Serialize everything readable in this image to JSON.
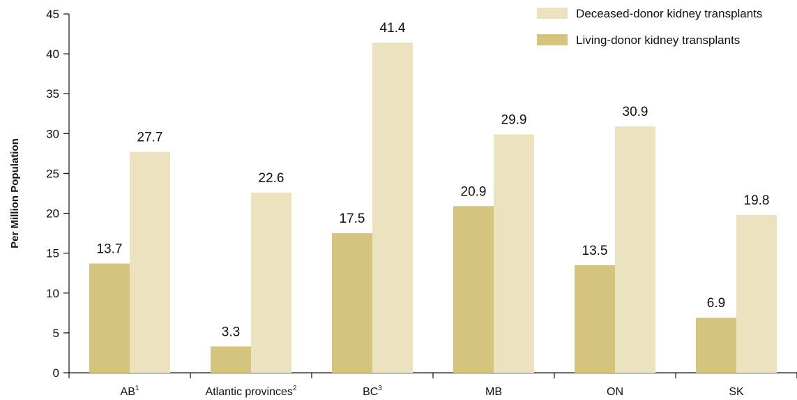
{
  "chart_data": {
    "type": "bar",
    "ylabel": "Per Million Population",
    "xlabel": "",
    "ylim": [
      0,
      45
    ],
    "yticks": [
      0,
      5,
      10,
      15,
      20,
      25,
      30,
      35,
      40,
      45
    ],
    "grid": false,
    "legend_position": "top-right",
    "categories": [
      {
        "label": "AB",
        "sup": "1"
      },
      {
        "label": "Atlantic provinces",
        "sup": "2"
      },
      {
        "label": "BC",
        "sup": "3"
      },
      {
        "label": "MB",
        "sup": ""
      },
      {
        "label": "ON",
        "sup": ""
      },
      {
        "label": "SK",
        "sup": ""
      }
    ],
    "series": [
      {
        "name": "Living-donor kidney transplants",
        "color": "#d4c47e",
        "values": [
          13.7,
          3.3,
          17.5,
          20.9,
          13.5,
          6.9
        ]
      },
      {
        "name": "Deceased-donor kidney transplants",
        "color": "#ebe3bf",
        "values": [
          27.7,
          22.6,
          41.4,
          29.9,
          30.9,
          19.8
        ]
      }
    ],
    "legend_order": [
      1,
      0
    ]
  }
}
